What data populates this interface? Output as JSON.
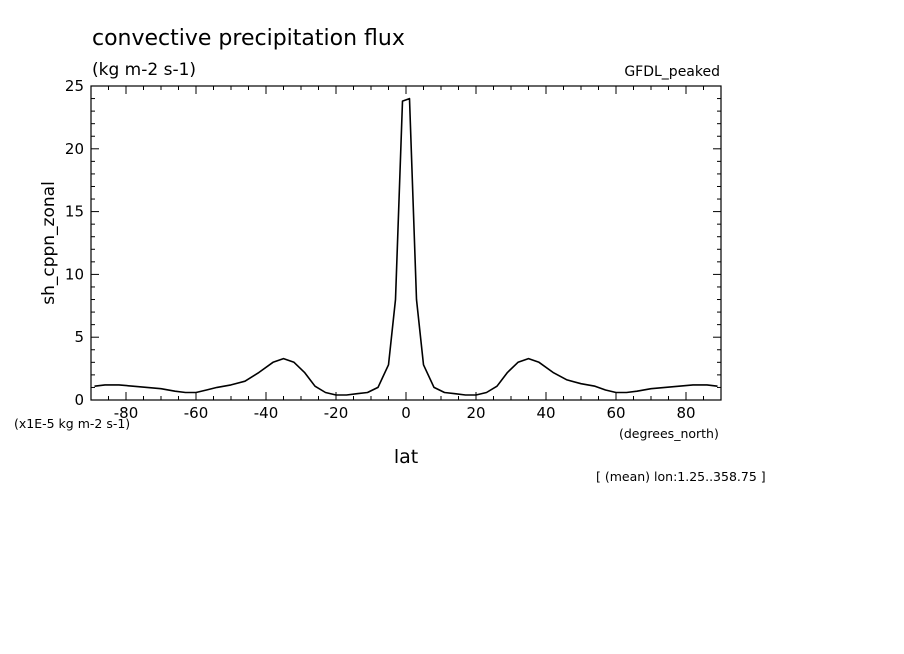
{
  "chart_data": {
    "type": "line",
    "title": "convective precipitation flux",
    "subtitle": "(kg m-2 s-1)",
    "experiment_tag": "GFDL_peaked",
    "ylabel": "sh_cppn_zonal",
    "xlabel": "lat",
    "x_units": "(degrees_north)",
    "y_scale_note": "(x1E-5 kg m-2 s-1)",
    "footer_note": "[ (mean) lon:1.25..358.75 ]",
    "xlim": [
      -90,
      90
    ],
    "ylim": [
      0,
      25
    ],
    "x_ticks": [
      -80,
      -60,
      -40,
      -20,
      0,
      20,
      40,
      60,
      80
    ],
    "y_ticks": [
      0,
      5,
      10,
      15,
      20,
      25
    ],
    "grid": false,
    "line_color": "#000000",
    "series": [
      {
        "x": [
          -89,
          -86,
          -82,
          -78,
          -74,
          -70,
          -66,
          -63,
          -60,
          -57,
          -54,
          -50,
          -46,
          -42,
          -38,
          -35,
          -32,
          -29,
          -26,
          -23,
          -20,
          -17,
          -14,
          -11,
          -8,
          -5,
          -3,
          -1,
          1,
          3,
          5,
          8,
          11,
          14,
          17,
          20,
          23,
          26,
          29,
          32,
          35,
          38,
          42,
          46,
          50,
          54,
          57,
          60,
          63,
          66,
          70,
          74,
          78,
          82,
          86,
          89
        ],
        "y": [
          1.1,
          1.2,
          1.2,
          1.1,
          1.0,
          0.9,
          0.7,
          0.6,
          0.6,
          0.8,
          1.0,
          1.2,
          1.5,
          2.2,
          3.0,
          3.3,
          3.0,
          2.2,
          1.1,
          0.6,
          0.4,
          0.4,
          0.5,
          0.6,
          1.0,
          2.8,
          8.0,
          23.8,
          24.0,
          8.0,
          2.8,
          1.0,
          0.6,
          0.5,
          0.4,
          0.4,
          0.6,
          1.1,
          2.2,
          3.0,
          3.3,
          3.0,
          2.2,
          1.6,
          1.3,
          1.1,
          0.8,
          0.6,
          0.6,
          0.7,
          0.9,
          1.0,
          1.1,
          1.2,
          1.2,
          1.1
        ]
      }
    ]
  }
}
